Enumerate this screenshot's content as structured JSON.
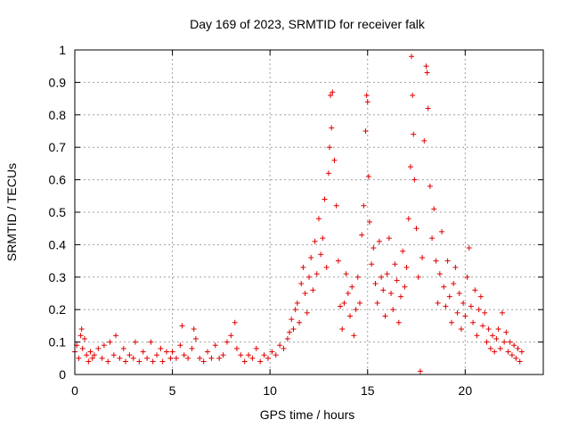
{
  "chart_data": {
    "type": "scatter",
    "title": "Day 169 of 2023, SRMTID for receiver falk",
    "xlabel": "GPS time / hours",
    "ylabel": "SRMTID / TECUs",
    "xlim": [
      0,
      24
    ],
    "ylim": [
      0,
      1
    ],
    "x_ticks": [
      0,
      5,
      10,
      15,
      20
    ],
    "x_tick_labels": [
      "0",
      "5",
      "10",
      "15",
      "20"
    ],
    "y_ticks": [
      0,
      0.1,
      0.2,
      0.3,
      0.4,
      0.5,
      0.6,
      0.7,
      0.8,
      0.9,
      1
    ],
    "y_tick_labels": [
      "0",
      "0.1",
      "0.2",
      "0.3",
      "0.4",
      "0.5",
      "0.6",
      "0.7",
      "0.8",
      "0.9",
      "1"
    ],
    "grid": true,
    "marker": "+",
    "color": "#e00000",
    "series": [
      {
        "name": "SRMTID",
        "points": [
          [
            0.0,
            0.07
          ],
          [
            0.1,
            0.09
          ],
          [
            0.2,
            0.05
          ],
          [
            0.3,
            0.12
          ],
          [
            0.35,
            0.14
          ],
          [
            0.4,
            0.08
          ],
          [
            0.5,
            0.11
          ],
          [
            0.6,
            0.06
          ],
          [
            0.7,
            0.04
          ],
          [
            0.8,
            0.07
          ],
          [
            0.9,
            0.05
          ],
          [
            1.0,
            0.06
          ],
          [
            1.2,
            0.08
          ],
          [
            1.4,
            0.05
          ],
          [
            1.5,
            0.09
          ],
          [
            1.7,
            0.04
          ],
          [
            1.8,
            0.1
          ],
          [
            2.0,
            0.06
          ],
          [
            2.1,
            0.12
          ],
          [
            2.3,
            0.05
          ],
          [
            2.5,
            0.08
          ],
          [
            2.6,
            0.04
          ],
          [
            2.8,
            0.06
          ],
          [
            3.0,
            0.05
          ],
          [
            3.1,
            0.1
          ],
          [
            3.3,
            0.04
          ],
          [
            3.5,
            0.07
          ],
          [
            3.7,
            0.05
          ],
          [
            3.9,
            0.1
          ],
          [
            4.0,
            0.04
          ],
          [
            4.2,
            0.06
          ],
          [
            4.4,
            0.08
          ],
          [
            4.5,
            0.04
          ],
          [
            4.7,
            0.07
          ],
          [
            4.9,
            0.05
          ],
          [
            5.0,
            0.07
          ],
          [
            5.2,
            0.05
          ],
          [
            5.4,
            0.09
          ],
          [
            5.5,
            0.15
          ],
          [
            5.6,
            0.06
          ],
          [
            5.8,
            0.05
          ],
          [
            6.0,
            0.08
          ],
          [
            6.1,
            0.14
          ],
          [
            6.2,
            0.11
          ],
          [
            6.4,
            0.05
          ],
          [
            6.6,
            0.04
          ],
          [
            6.8,
            0.07
          ],
          [
            7.0,
            0.05
          ],
          [
            7.2,
            0.09
          ],
          [
            7.4,
            0.05
          ],
          [
            7.6,
            0.06
          ],
          [
            7.8,
            0.1
          ],
          [
            8.0,
            0.12
          ],
          [
            8.2,
            0.16
          ],
          [
            8.3,
            0.08
          ],
          [
            8.5,
            0.06
          ],
          [
            8.7,
            0.04
          ],
          [
            8.9,
            0.06
          ],
          [
            9.1,
            0.05
          ],
          [
            9.3,
            0.08
          ],
          [
            9.5,
            0.04
          ],
          [
            9.7,
            0.06
          ],
          [
            9.9,
            0.05
          ],
          [
            10.1,
            0.07
          ],
          [
            10.3,
            0.06
          ],
          [
            10.5,
            0.09
          ],
          [
            10.7,
            0.08
          ],
          [
            10.9,
            0.11
          ],
          [
            11.0,
            0.13
          ],
          [
            11.1,
            0.17
          ],
          [
            11.2,
            0.14
          ],
          [
            11.3,
            0.2
          ],
          [
            11.4,
            0.22
          ],
          [
            11.5,
            0.16
          ],
          [
            11.6,
            0.28
          ],
          [
            11.7,
            0.33
          ],
          [
            11.8,
            0.25
          ],
          [
            11.9,
            0.19
          ],
          [
            12.0,
            0.3
          ],
          [
            12.1,
            0.36
          ],
          [
            12.2,
            0.26
          ],
          [
            12.3,
            0.41
          ],
          [
            12.4,
            0.31
          ],
          [
            12.5,
            0.48
          ],
          [
            12.6,
            0.37
          ],
          [
            12.7,
            0.42
          ],
          [
            12.8,
            0.54
          ],
          [
            12.9,
            0.33
          ],
          [
            13.0,
            0.62
          ],
          [
            13.05,
            0.7
          ],
          [
            13.1,
            0.86
          ],
          [
            13.15,
            0.76
          ],
          [
            13.2,
            0.87
          ],
          [
            13.3,
            0.66
          ],
          [
            13.4,
            0.52
          ],
          [
            13.5,
            0.35
          ],
          [
            13.6,
            0.21
          ],
          [
            13.7,
            0.14
          ],
          [
            13.8,
            0.22
          ],
          [
            13.9,
            0.31
          ],
          [
            14.0,
            0.25
          ],
          [
            14.1,
            0.18
          ],
          [
            14.2,
            0.27
          ],
          [
            14.3,
            0.12
          ],
          [
            14.4,
            0.2
          ],
          [
            14.5,
            0.3
          ],
          [
            14.6,
            0.22
          ],
          [
            14.7,
            0.43
          ],
          [
            14.8,
            0.52
          ],
          [
            14.9,
            0.75
          ],
          [
            14.95,
            0.86
          ],
          [
            15.0,
            0.84
          ],
          [
            15.05,
            0.61
          ],
          [
            15.1,
            0.47
          ],
          [
            15.2,
            0.34
          ],
          [
            15.3,
            0.39
          ],
          [
            15.4,
            0.28
          ],
          [
            15.5,
            0.22
          ],
          [
            15.6,
            0.41
          ],
          [
            15.7,
            0.3
          ],
          [
            15.8,
            0.26
          ],
          [
            15.9,
            0.18
          ],
          [
            16.0,
            0.31
          ],
          [
            16.1,
            0.42
          ],
          [
            16.2,
            0.25
          ],
          [
            16.3,
            0.2
          ],
          [
            16.4,
            0.34
          ],
          [
            16.5,
            0.29
          ],
          [
            16.6,
            0.16
          ],
          [
            16.7,
            0.24
          ],
          [
            16.8,
            0.38
          ],
          [
            16.9,
            0.27
          ],
          [
            17.0,
            0.33
          ],
          [
            17.1,
            0.48
          ],
          [
            17.2,
            0.64
          ],
          [
            17.25,
            0.98
          ],
          [
            17.3,
            0.86
          ],
          [
            17.35,
            0.74
          ],
          [
            17.4,
            0.6
          ],
          [
            17.5,
            0.45
          ],
          [
            17.6,
            0.3
          ],
          [
            17.7,
            0.01
          ],
          [
            17.8,
            0.36
          ],
          [
            17.9,
            0.72
          ],
          [
            18.0,
            0.95
          ],
          [
            18.05,
            0.93
          ],
          [
            18.1,
            0.82
          ],
          [
            18.2,
            0.58
          ],
          [
            18.3,
            0.42
          ],
          [
            18.4,
            0.51
          ],
          [
            18.5,
            0.35
          ],
          [
            18.6,
            0.22
          ],
          [
            18.7,
            0.31
          ],
          [
            18.8,
            0.44
          ],
          [
            18.9,
            0.27
          ],
          [
            19.0,
            0.21
          ],
          [
            19.1,
            0.35
          ],
          [
            19.2,
            0.24
          ],
          [
            19.3,
            0.16
          ],
          [
            19.4,
            0.28
          ],
          [
            19.5,
            0.33
          ],
          [
            19.6,
            0.19
          ],
          [
            19.7,
            0.25
          ],
          [
            19.8,
            0.14
          ],
          [
            19.9,
            0.22
          ],
          [
            20.0,
            0.18
          ],
          [
            20.1,
            0.3
          ],
          [
            20.2,
            0.39
          ],
          [
            20.3,
            0.21
          ],
          [
            20.4,
            0.16
          ],
          [
            20.5,
            0.26
          ],
          [
            20.6,
            0.12
          ],
          [
            20.7,
            0.2
          ],
          [
            20.8,
            0.24
          ],
          [
            20.9,
            0.15
          ],
          [
            21.0,
            0.19
          ],
          [
            21.1,
            0.1
          ],
          [
            21.2,
            0.14
          ],
          [
            21.3,
            0.08
          ],
          [
            21.4,
            0.12
          ],
          [
            21.5,
            0.07
          ],
          [
            21.6,
            0.11
          ],
          [
            21.7,
            0.14
          ],
          [
            21.8,
            0.08
          ],
          [
            21.9,
            0.19
          ],
          [
            22.0,
            0.1
          ],
          [
            22.1,
            0.13
          ],
          [
            22.2,
            0.07
          ],
          [
            22.3,
            0.1
          ],
          [
            22.4,
            0.06
          ],
          [
            22.5,
            0.09
          ],
          [
            22.6,
            0.05
          ],
          [
            22.7,
            0.08
          ],
          [
            22.8,
            0.04
          ],
          [
            22.9,
            0.07
          ]
        ]
      }
    ]
  }
}
